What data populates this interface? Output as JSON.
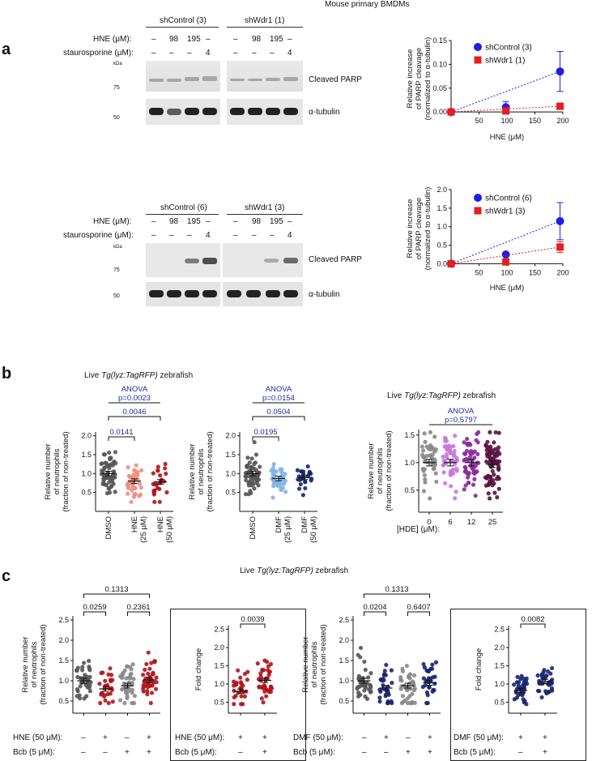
{
  "header": {
    "title": "Mouse primary BMDMs"
  },
  "panel_a": {
    "label": "a",
    "top": {
      "group1": "shControl (3)",
      "group2": "shWdr1 (1)",
      "row_hne_label": "HNE (μM):",
      "row_hne": [
        "–",
        "98",
        "195",
        "–"
      ],
      "row_stau_label": "staurosporine (μM):",
      "row_stau": [
        "–",
        "–",
        "–",
        "4"
      ],
      "kda": "kDa",
      "mw75": "75",
      "mw50": "50",
      "band1": "Cleaved PARP",
      "band2": "α-tubulin"
    },
    "bottom": {
      "group1": "shControl (6)",
      "group2": "shWdr1 (3)",
      "row_hne_label": "HNE (μM):",
      "row_hne": [
        "–",
        "98",
        "195",
        "–"
      ],
      "row_stau_label": "staurosporine (μM):",
      "row_stau": [
        "–",
        "–",
        "–",
        "4"
      ],
      "kda": "kDa",
      "mw75": "75",
      "mw50": "50",
      "band1": "Cleaved PARP",
      "band2": "α-tubulin"
    }
  },
  "panel_b": {
    "label": "b",
    "group_title_left": "Live Tg(lyz:TagRFP) zebrafish",
    "group_title_right": "Live Tg(lyz:TagRFP) zebrafish",
    "hde_x_title": "[HDE] (μM):"
  },
  "panel_c": {
    "label": "c",
    "title": "Live Tg(lyz:TagRFP) zebrafish",
    "rows": [
      {
        "label": "HNE (50 μM):",
        "cells": [
          "–",
          "+",
          "–",
          "+"
        ]
      },
      {
        "label": "Bcb (5 μM):",
        "cells": [
          "–",
          "–",
          "+",
          "+"
        ]
      },
      {
        "label": "HNE (50 μM):",
        "cells": [
          "+",
          "+"
        ]
      },
      {
        "label": "Bcb (5 μM):",
        "cells": [
          "–",
          "+"
        ]
      },
      {
        "label": "DMF (50 μM):",
        "cells": [
          "–",
          "+",
          "–",
          "+"
        ]
      },
      {
        "label": "Bcb (5 μM):",
        "cells": [
          "–",
          "–",
          "+",
          "+"
        ]
      },
      {
        "label": "DMF (50 μM):",
        "cells": [
          "+",
          "+"
        ]
      },
      {
        "label": "Bcb (5 μM):",
        "cells": [
          "–",
          "+"
        ]
      }
    ]
  },
  "chart_data": [
    {
      "type": "scatter",
      "id": "a-top",
      "xlabel": "HNE (μM)",
      "ylabel": "Relative increase of PARP cleavage (normalized to α-tubulin)",
      "xticks": [
        50,
        100,
        150,
        200
      ],
      "yticks": [
        0.0,
        0.05,
        0.1,
        0.15
      ],
      "xlim": [
        0,
        200
      ],
      "ylim": [
        -0.01,
        0.15
      ],
      "series": [
        {
          "name": "shControl (3)",
          "color": "#1e1ee6",
          "marker": "circle",
          "x": [
            0,
            98,
            195
          ],
          "y": [
            0.0,
            0.01,
            0.085
          ],
          "err": [
            0,
            0.012,
            0.042
          ]
        },
        {
          "name": "shWdr1 (1)",
          "color": "#e61e1e",
          "marker": "square",
          "x": [
            0,
            98,
            195
          ],
          "y": [
            0.0,
            0.002,
            0.012
          ],
          "err": [
            0,
            0.004,
            0.004
          ]
        }
      ]
    },
    {
      "type": "scatter",
      "id": "a-bottom",
      "xlabel": "HNE (μM)",
      "ylabel": "Relative increase of PARP cleavage (normalized to α-tubulin)",
      "xticks": [
        50,
        100,
        150,
        200
      ],
      "yticks": [
        0.0,
        0.5,
        1.0,
        1.5,
        2.0
      ],
      "xlim": [
        0,
        200
      ],
      "ylim": [
        -0.1,
        2.0
      ],
      "series": [
        {
          "name": "shControl (6)",
          "color": "#1e1ee6",
          "marker": "circle",
          "x": [
            0,
            98,
            195
          ],
          "y": [
            0.0,
            0.25,
            1.15
          ],
          "err": [
            0,
            0.05,
            0.5
          ]
        },
        {
          "name": "shWdr1 (3)",
          "color": "#e61e1e",
          "marker": "square",
          "x": [
            0,
            98,
            195
          ],
          "y": [
            0.0,
            0.05,
            0.45
          ],
          "err": [
            0,
            0.02,
            0.15
          ]
        }
      ]
    },
    {
      "type": "scatter",
      "id": "b-hne",
      "ylabel": "Relative number of neutrophils (fraction of non-treated)",
      "ylim": [
        0,
        2.1
      ],
      "yticks": [
        0.5,
        1.0,
        1.5,
        2.0
      ],
      "categories": [
        "DMSO",
        "HNE (25 μM)",
        "HNE (50 μM)"
      ],
      "colors": [
        "#555555",
        "#f08d80",
        "#b0141c"
      ],
      "means": [
        1.0,
        0.8,
        0.78
      ],
      "ns": [
        60,
        40,
        25
      ],
      "anova": "ANOVA",
      "anova_p": "p=0.0023",
      "brackets": [
        {
          "from": 0,
          "to": 2,
          "label": "0.0046"
        },
        {
          "from": 0,
          "to": 1,
          "label": "0.0141"
        }
      ]
    },
    {
      "type": "scatter",
      "id": "b-dmf",
      "ylabel": "Relative number of neutrophils (fraction of non-treated)",
      "ylim": [
        0,
        2.1
      ],
      "yticks": [
        0.5,
        1.0,
        1.5,
        2.0
      ],
      "categories": [
        "DMSO",
        "DMF (25 μM)",
        "DMF (50 μM)"
      ],
      "colors": [
        "#555555",
        "#7fb2e6",
        "#1a2570"
      ],
      "means": [
        1.0,
        0.87,
        0.9
      ],
      "ns": [
        60,
        40,
        25
      ],
      "anova": "ANOVA",
      "anova_p": "p=0.0154",
      "brackets": [
        {
          "from": 0,
          "to": 2,
          "label": "0.0504"
        },
        {
          "from": 0,
          "to": 1,
          "label": "0.0195"
        }
      ]
    },
    {
      "type": "scatter",
      "id": "b-hde",
      "ylabel": "Relative number of neutrophils (fraction of non-treated)",
      "ylim": [
        0.1,
        1.6
      ],
      "yticks": [
        0.5,
        1.0,
        1.5
      ],
      "categories": [
        "0",
        "6",
        "12",
        "25"
      ],
      "colors": [
        "#888888",
        "#c678dc",
        "#8a2a9c",
        "#5a1240"
      ],
      "means": [
        1.0,
        1.0,
        1.0,
        0.97
      ],
      "ns": [
        45,
        50,
        55,
        80
      ],
      "anova": "ANOVA",
      "anova_p": "p=0.5797",
      "brackets": []
    },
    {
      "type": "scatter",
      "id": "c-hne",
      "ylabel": "Relative number of neutrophils (fraction of non-treated)",
      "ylim": [
        0.2,
        2.6
      ],
      "yticks": [
        0.5,
        1.0,
        1.5,
        2.0,
        2.5
      ],
      "colors": [
        "#555555",
        "#b0141c",
        "#888888",
        "#b0141c"
      ],
      "means": [
        1.0,
        0.8,
        0.88,
        1.02
      ],
      "ns": [
        40,
        28,
        40,
        40
      ],
      "brackets": [
        {
          "from": 0,
          "to": 3,
          "label": "0.1313"
        },
        {
          "from": 0,
          "to": 1,
          "label": "0.0259"
        },
        {
          "from": 2,
          "to": 3,
          "label": "0.2361"
        }
      ]
    },
    {
      "type": "scatter",
      "id": "c-hne-fold",
      "ylabel": "Fold change",
      "ylim": [
        0.2,
        2.6
      ],
      "yticks": [
        0.5,
        1.0,
        1.5,
        2.0,
        2.5
      ],
      "colors": [
        "#b0141c",
        "#b0141c"
      ],
      "means": [
        0.8,
        1.1
      ],
      "ns": [
        28,
        40
      ],
      "brackets": [
        {
          "from": 0,
          "to": 1,
          "label": "0.0039"
        }
      ]
    },
    {
      "type": "scatter",
      "id": "c-dmf",
      "ylabel": "Relative number of neutrophils (fraction of non-treated)",
      "ylim": [
        0.2,
        2.6
      ],
      "yticks": [
        0.5,
        1.0,
        1.5,
        2.0,
        2.5
      ],
      "colors": [
        "#555555",
        "#1a2570",
        "#888888",
        "#1a2570"
      ],
      "means": [
        1.0,
        0.82,
        0.88,
        0.95
      ],
      "ns": [
        40,
        30,
        40,
        30
      ],
      "brackets": [
        {
          "from": 0,
          "to": 3,
          "label": "0.1313"
        },
        {
          "from": 0,
          "to": 1,
          "label": "0.0204"
        },
        {
          "from": 2,
          "to": 3,
          "label": "0.6407"
        }
      ]
    },
    {
      "type": "scatter",
      "id": "c-dmf-fold",
      "ylabel": "Fold change",
      "ylim": [
        0.2,
        2.6
      ],
      "yticks": [
        0.5,
        1.0,
        1.5,
        2.0,
        2.5
      ],
      "colors": [
        "#1a2570",
        "#1a2570"
      ],
      "means": [
        0.82,
        1.07
      ],
      "ns": [
        35,
        35
      ],
      "brackets": [
        {
          "from": 0,
          "to": 1,
          "label": "0.0082"
        }
      ]
    }
  ]
}
